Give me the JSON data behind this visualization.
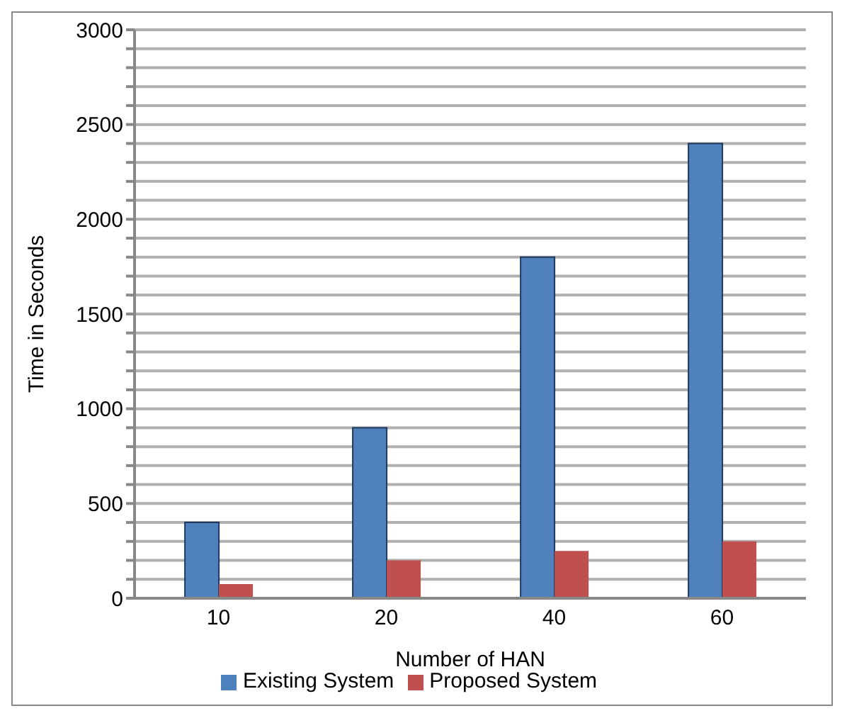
{
  "chart_data": {
    "type": "bar",
    "xlabel": "Number of HAN",
    "ylabel": "Time in Seconds",
    "categories": [
      "10",
      "20",
      "40",
      "60"
    ],
    "series": [
      {
        "name": "Existing System",
        "color": "#4f81bd",
        "values": [
          400,
          900,
          1800,
          2400
        ]
      },
      {
        "name": "Proposed System",
        "color": "#c0504d",
        "values": [
          75,
          200,
          250,
          300
        ]
      }
    ],
    "ylim": [
      0,
      3000
    ],
    "yticks": [
      0,
      {
        "value": 100,
        "label": null
      },
      {
        "value": 200,
        "label": null
      },
      {
        "value": 300,
        "label": null
      },
      {
        "value": 400,
        "label": null
      },
      500,
      {
        "value": 600,
        "label": null
      },
      {
        "value": 700,
        "label": null
      },
      {
        "value": 800,
        "label": null
      },
      {
        "value": 900,
        "label": null
      },
      1000,
      {
        "value": 1100,
        "label": null
      },
      {
        "value": 1200,
        "label": null
      },
      {
        "value": 1300,
        "label": null
      },
      {
        "value": 1400,
        "label": null
      },
      1500,
      {
        "value": 1600,
        "label": null
      },
      {
        "value": 1700,
        "label": null
      },
      {
        "value": 1800,
        "label": null
      },
      {
        "value": 1900,
        "label": null
      },
      2000,
      {
        "value": 2100,
        "label": null
      },
      {
        "value": 2200,
        "label": null
      },
      {
        "value": 2300,
        "label": null
      },
      {
        "value": 2400,
        "label": null
      },
      2500,
      {
        "value": 2600,
        "label": null
      },
      {
        "value": 2700,
        "label": null
      },
      {
        "value": 2800,
        "label": null
      },
      {
        "value": 2900,
        "label": null
      },
      3000
    ],
    "grid": "y",
    "legend": "bottom"
  }
}
